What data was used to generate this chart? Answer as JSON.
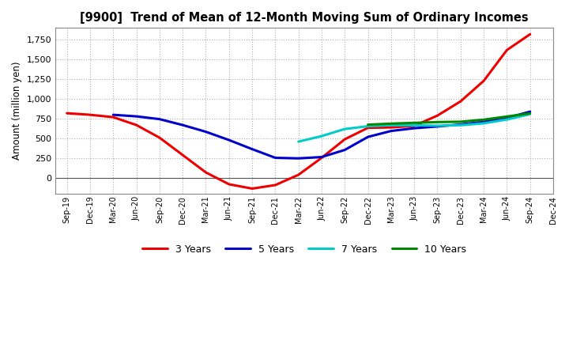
{
  "title": "[9900]  Trend of Mean of 12-Month Moving Sum of Ordinary Incomes",
  "ylabel": "Amount (million yen)",
  "background_color": "#ffffff",
  "plot_bg_color": "#ffffff",
  "grid_color": "#b0b0b0",
  "x_labels": [
    "Sep-19",
    "Dec-19",
    "Mar-20",
    "Jun-20",
    "Sep-20",
    "Dec-20",
    "Mar-21",
    "Jun-21",
    "Sep-21",
    "Dec-21",
    "Mar-22",
    "Jun-22",
    "Sep-22",
    "Dec-22",
    "Mar-23",
    "Jun-23",
    "Sep-23",
    "Dec-23",
    "Mar-24",
    "Jun-24",
    "Sep-24",
    "Dec-24"
  ],
  "ylim": [
    -200,
    1900
  ],
  "yticks": [
    0,
    250,
    500,
    750,
    1000,
    1250,
    1500,
    1750
  ],
  "series": {
    "3 Years": {
      "color": "#ee0000",
      "data_x": [
        0,
        1,
        2,
        3,
        4,
        5,
        6,
        7,
        8,
        9,
        10,
        11,
        12,
        13,
        14,
        15,
        16,
        17,
        18,
        19,
        20
      ],
      "data_y": [
        820,
        800,
        770,
        670,
        510,
        290,
        70,
        -80,
        -135,
        -90,
        40,
        255,
        490,
        635,
        640,
        660,
        790,
        970,
        1230,
        1620,
        1820
      ]
    },
    "5 Years": {
      "color": "#0000cc",
      "data_x": [
        2,
        3,
        4,
        5,
        6,
        7,
        8,
        9,
        10,
        11,
        12,
        13,
        14,
        15,
        16,
        17,
        18,
        19,
        20
      ],
      "data_y": [
        800,
        780,
        745,
        670,
        585,
        480,
        365,
        255,
        248,
        265,
        355,
        520,
        595,
        630,
        652,
        678,
        710,
        760,
        840
      ]
    },
    "7 Years": {
      "color": "#00cccc",
      "data_x": [
        10,
        11,
        12,
        13,
        14,
        15,
        16,
        17,
        18,
        19,
        20
      ],
      "data_y": [
        460,
        530,
        620,
        655,
        668,
        668,
        662,
        668,
        692,
        740,
        808
      ]
    },
    "10 Years": {
      "color": "#008800",
      "data_x": [
        13,
        14,
        15,
        16,
        17,
        18,
        19,
        20
      ],
      "data_y": [
        675,
        688,
        698,
        708,
        712,
        738,
        778,
        818
      ]
    }
  }
}
